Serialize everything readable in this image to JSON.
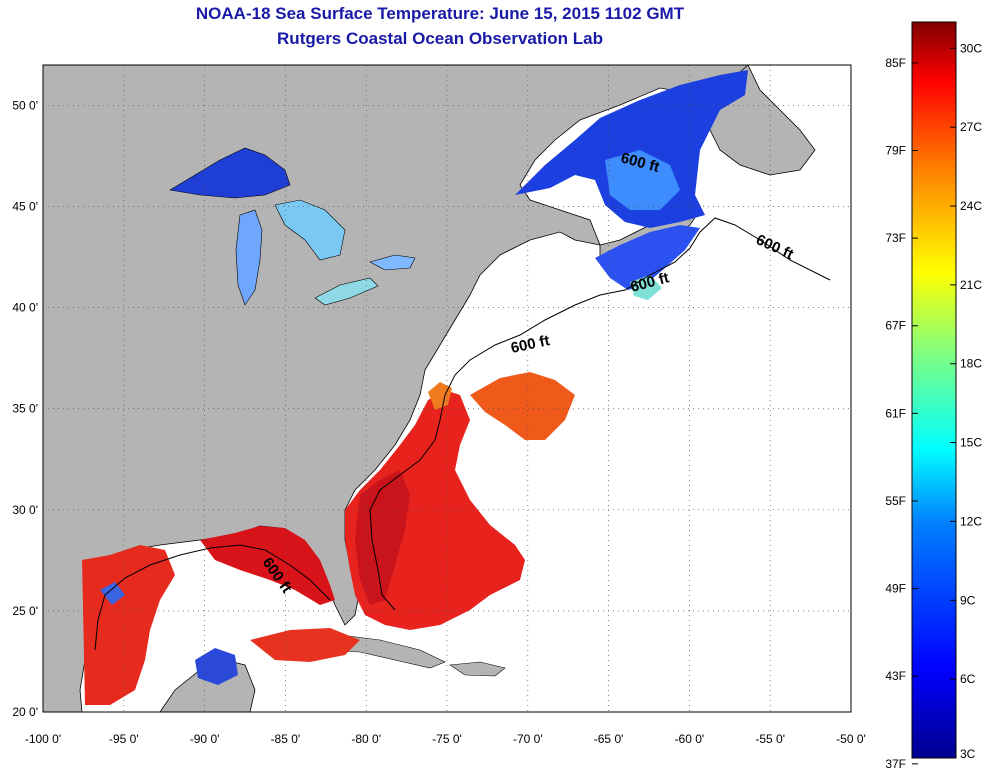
{
  "title": "NOAA-18 Sea Surface Temperature:  June 15, 2015 1102 GMT",
  "subtitle": "Rutgers Coastal Ocean Observation Lab",
  "map": {
    "lon_range": [
      -100,
      -50
    ],
    "lat_range": [
      20,
      52
    ],
    "land_color": "#b4b4b4",
    "no_data_color": "#ffffff",
    "grid": true,
    "lon_ticks": [
      "-100 0'",
      "-95 0'",
      "-90 0'",
      "-85 0'",
      "-80 0'",
      "-75 0'",
      "-70 0'",
      "-65 0'",
      "-60 0'",
      "-55 0'",
      "-50 0'"
    ],
    "lat_ticks": [
      "50 0'",
      "45 0'",
      "40 0'",
      "35 0'",
      "30 0'",
      "25 0'",
      "20 0'"
    ],
    "contour_label": "600 ft"
  },
  "colorbar": {
    "position": "right",
    "min_c": 3,
    "max_c": 31,
    "celsius_labels": [
      "30C",
      "27C",
      "24C",
      "21C",
      "18C",
      "15C",
      "12C",
      "9C",
      "6C",
      "3C"
    ],
    "fahrenheit_labels": [
      "85F",
      "79F",
      "73F",
      "67F",
      "61F",
      "55F",
      "49F",
      "43F",
      "37F"
    ],
    "colors": [
      "#00008f",
      "#0000ff",
      "#0080ff",
      "#00ffff",
      "#80ff80",
      "#ffff00",
      "#ff8000",
      "#ff0000",
      "#800000"
    ]
  }
}
